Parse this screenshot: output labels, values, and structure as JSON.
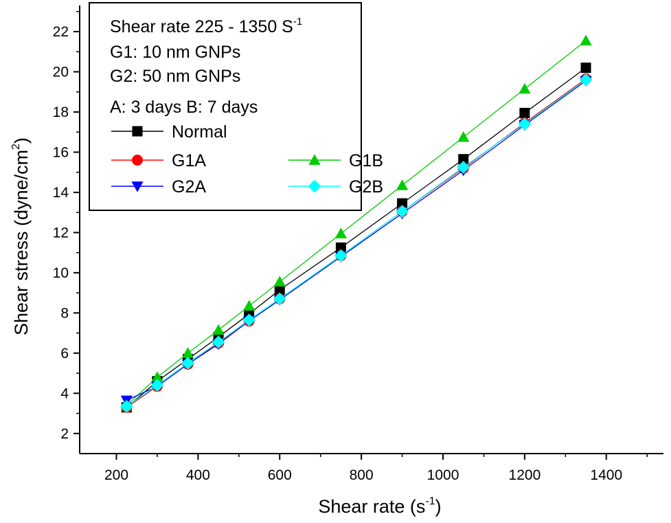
{
  "chart_data": {
    "type": "line",
    "xlabel": "Shear rate (s",
    "xlabel_sup": "-1",
    "xlabel_end": ")",
    "ylabel": "Shear stress (dyne/cm",
    "ylabel_sup": "2",
    "ylabel_end": ")",
    "xlim": [
      110,
      1540
    ],
    "ylim": [
      1.0,
      23.3
    ],
    "xticks": [
      200,
      400,
      600,
      800,
      1000,
      1200,
      1400
    ],
    "yticks": [
      2,
      4,
      6,
      8,
      10,
      12,
      14,
      16,
      18,
      20,
      22
    ],
    "grid": false,
    "legend_position": "top-left",
    "legend_notes": [
      {
        "text": "Shear rate 225 - 1350 S",
        "sup": "-1"
      },
      {
        "text": "G1: 10 nm GNPs"
      },
      {
        "text": "G2: 50 nm GNPs"
      },
      {
        "text": "A: 3 days    B: 7 days"
      }
    ],
    "x": [
      225,
      300,
      375,
      450,
      525,
      600,
      750,
      900,
      1050,
      1200,
      1350
    ],
    "series": [
      {
        "name": "Normal",
        "color": "#000000",
        "marker": "square",
        "values": [
          3.3,
          4.6,
          5.7,
          6.8,
          7.95,
          9.15,
          11.25,
          13.45,
          15.65,
          17.95,
          20.2
        ]
      },
      {
        "name": "G1A",
        "color": "#ff0000",
        "marker": "circle",
        "values": [
          3.3,
          4.35,
          5.45,
          6.5,
          7.6,
          8.7,
          10.85,
          13.05,
          15.2,
          17.45,
          19.65
        ]
      },
      {
        "name": "G1B",
        "color": "#00cc00",
        "marker": "triangle-up",
        "values": [
          3.4,
          4.8,
          6.0,
          7.15,
          8.35,
          9.55,
          11.95,
          14.35,
          16.75,
          19.15,
          21.55
        ]
      },
      {
        "name": "G2A",
        "color": "#0000ff",
        "marker": "triangle-down",
        "values": [
          3.65,
          4.35,
          5.45,
          6.45,
          7.6,
          8.65,
          10.8,
          12.95,
          15.1,
          17.35,
          19.55
        ]
      },
      {
        "name": "G2B",
        "color": "#00ffff",
        "marker": "diamond",
        "values": [
          3.35,
          4.4,
          5.5,
          6.55,
          7.65,
          8.7,
          10.85,
          13.05,
          15.25,
          17.4,
          19.6
        ]
      }
    ]
  }
}
